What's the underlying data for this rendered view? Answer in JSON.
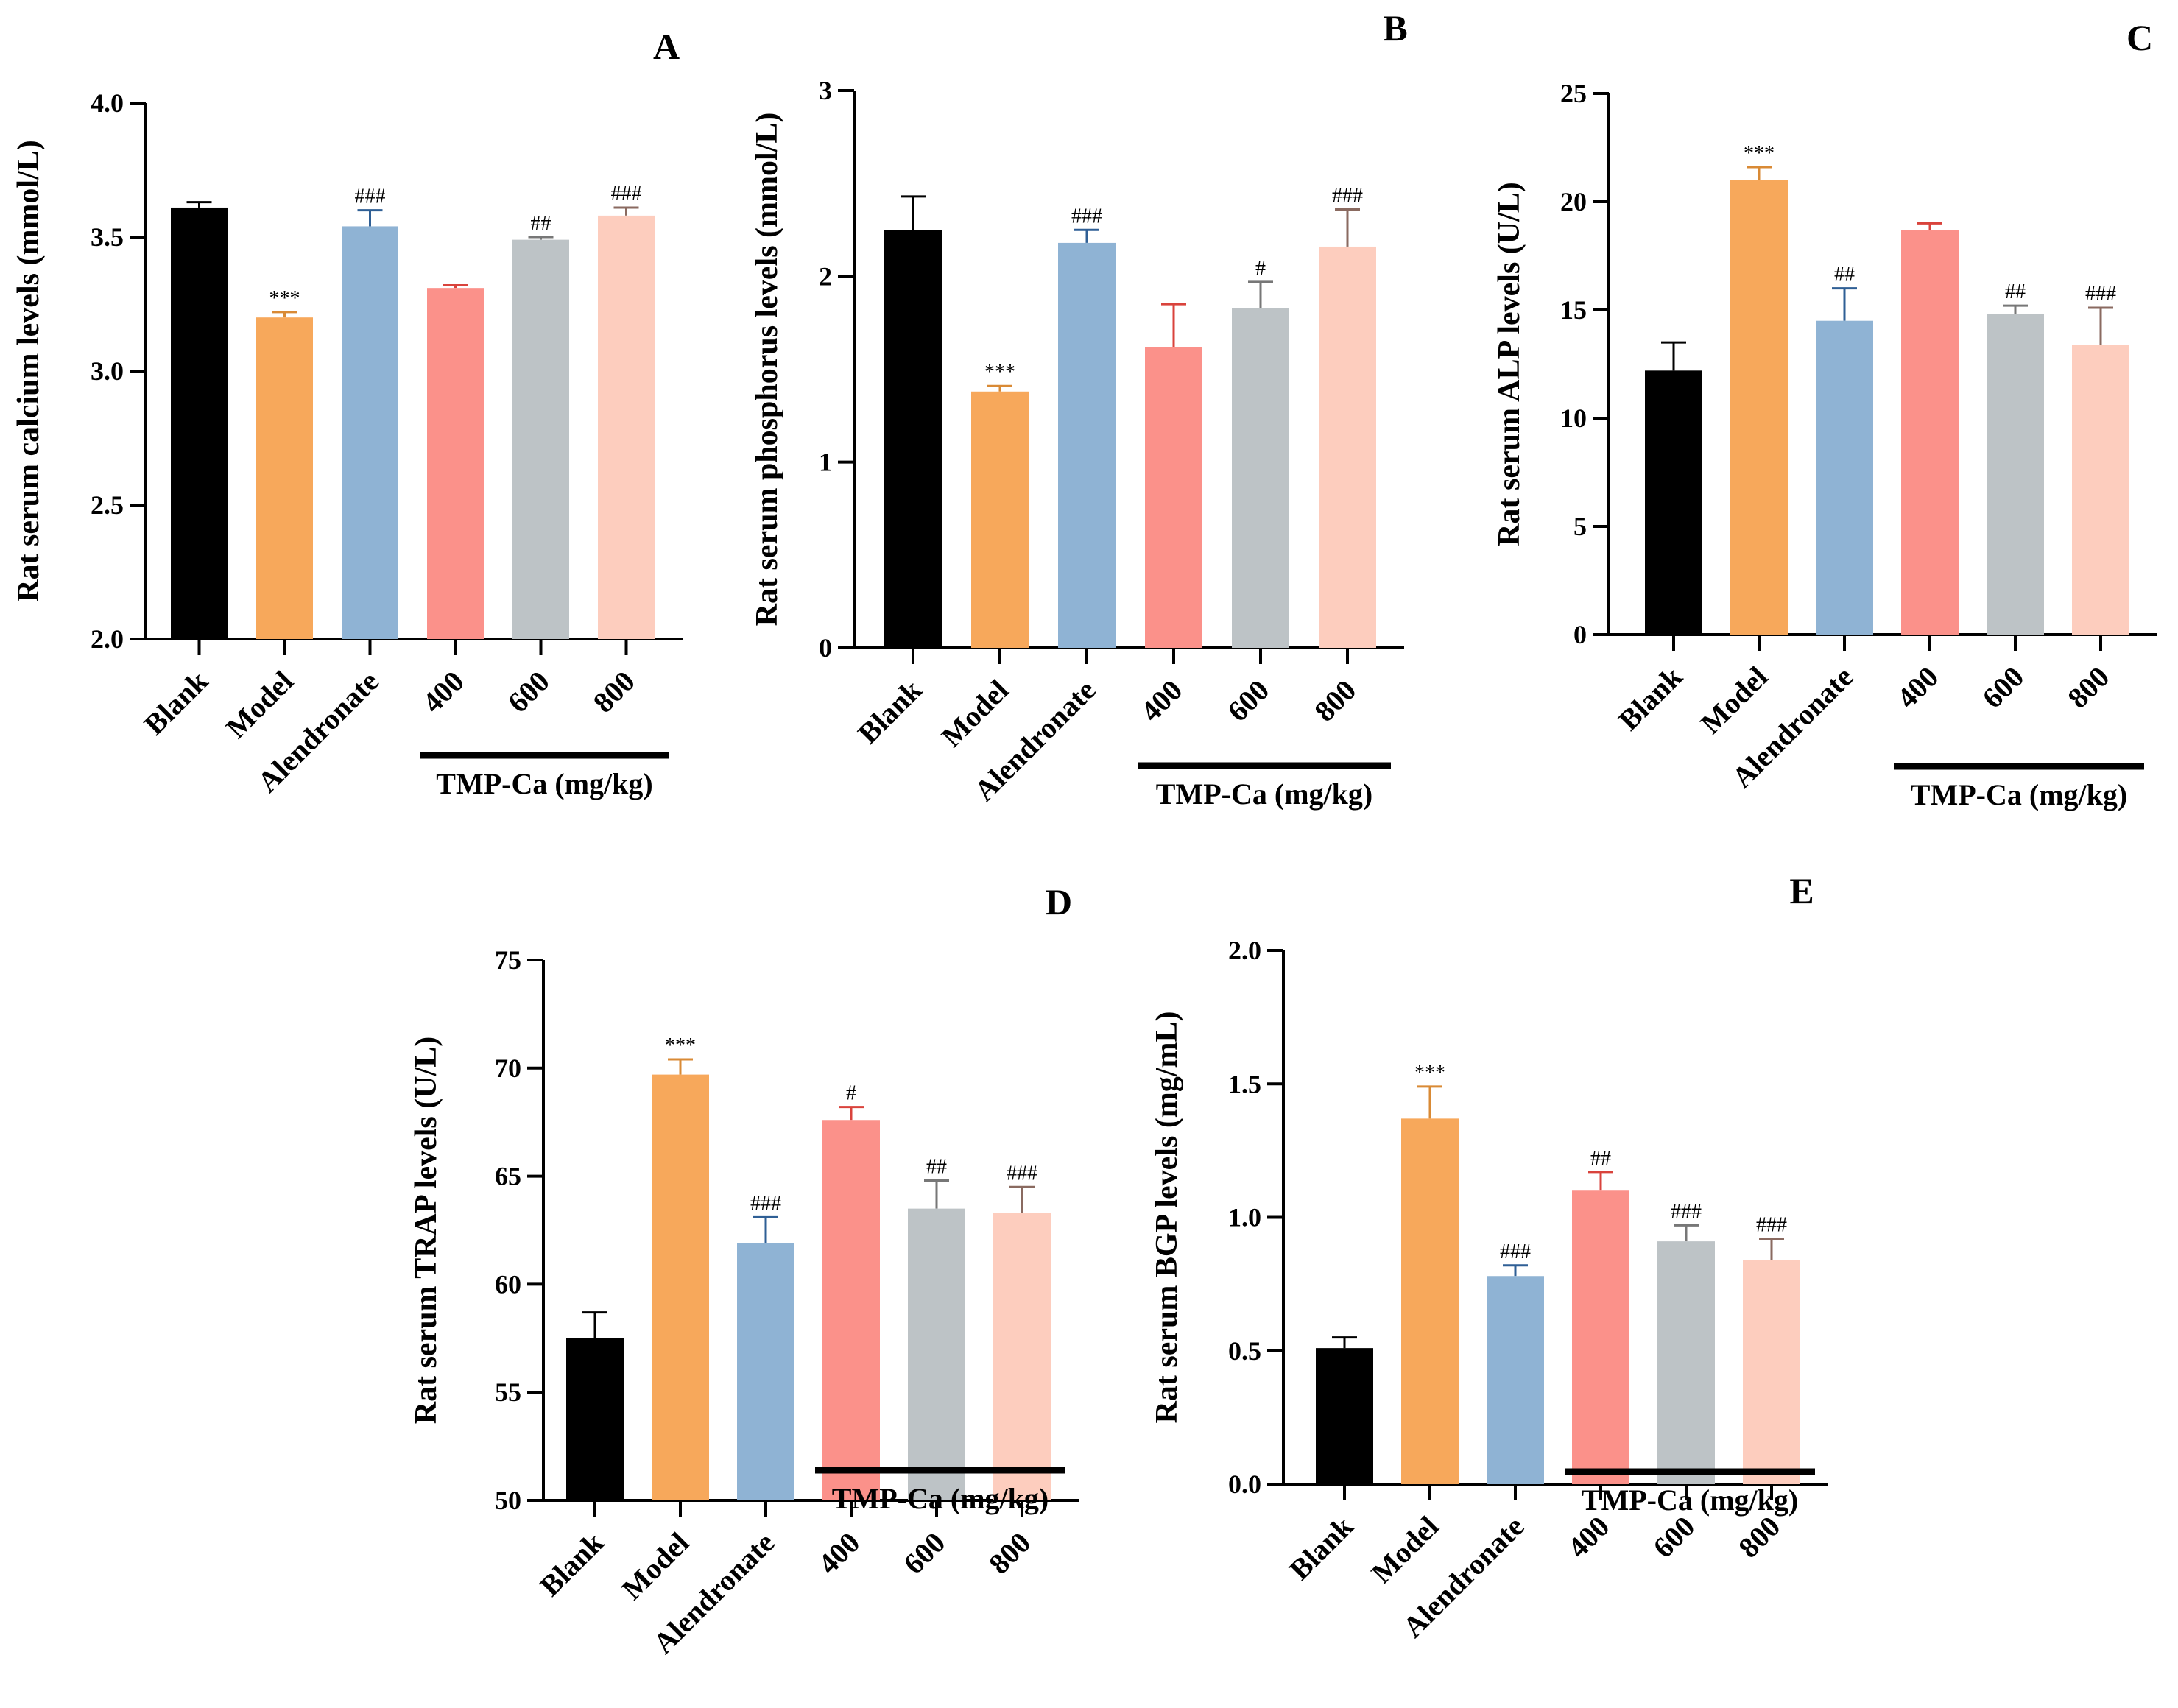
{
  "colors": {
    "Blank": "#000000",
    "Model": "#F7A85B",
    "Alendronate": "#8FB3D4",
    "400": "#FB918A",
    "600": "#BDC3C6",
    "800": "#FDCDBE"
  },
  "chart_data": [
    {
      "type": "bar",
      "panel": "A",
      "categories": [
        "Blank",
        "Model",
        "Alendronate",
        "400",
        "600",
        "800"
      ],
      "values": [
        3.61,
        3.2,
        3.54,
        3.31,
        3.49,
        3.58
      ],
      "errors": [
        0.02,
        0.02,
        0.06,
        0.01,
        0.01,
        0.03
      ],
      "significance": [
        "",
        "***",
        "###",
        "",
        "##",
        "###"
      ],
      "ylabel": "Rat serum calcium levels (mmol/L)",
      "ylim": [
        2.0,
        4.0
      ],
      "yticks": [
        "2.0",
        "2.5",
        "3.0",
        "3.5",
        "4.0"
      ],
      "group_label": "TMP-Ca (mg/kg)"
    },
    {
      "type": "bar",
      "panel": "B",
      "categories": [
        "Blank",
        "Model",
        "Alendronate",
        "400",
        "600",
        "800"
      ],
      "values": [
        2.25,
        1.38,
        2.18,
        1.62,
        1.83,
        2.16
      ],
      "errors": [
        0.18,
        0.03,
        0.07,
        0.23,
        0.14,
        0.2
      ],
      "significance": [
        "",
        "***",
        "###",
        "",
        "#",
        "###"
      ],
      "ylabel": "Rat serum phosphorus levels (mmol/L)",
      "ylim": [
        0,
        3
      ],
      "yticks": [
        "0",
        "1",
        "2",
        "3"
      ],
      "group_label": "TMP-Ca (mg/kg)"
    },
    {
      "type": "bar",
      "panel": "C",
      "categories": [
        "Blank",
        "Model",
        "Alendronate",
        "400",
        "600",
        "800"
      ],
      "values": [
        12.2,
        21.0,
        14.5,
        18.7,
        14.8,
        13.4
      ],
      "errors": [
        1.3,
        0.6,
        1.5,
        0.3,
        0.4,
        1.7
      ],
      "significance": [
        "",
        "***",
        "##",
        "",
        "##",
        "###"
      ],
      "ylabel": "Rat serum ALP levels (U/L)",
      "ylim": [
        0,
        25
      ],
      "yticks": [
        "0",
        "5",
        "10",
        "15",
        "20",
        "25"
      ],
      "group_label": "TMP-Ca (mg/kg)"
    },
    {
      "type": "bar",
      "panel": "D",
      "categories": [
        "Blank",
        "Model",
        "Alendronate",
        "400",
        "600",
        "800"
      ],
      "values": [
        57.5,
        69.7,
        61.9,
        67.6,
        63.5,
        63.3
      ],
      "errors": [
        1.2,
        0.7,
        1.2,
        0.6,
        1.3,
        1.2
      ],
      "significance": [
        "",
        "***",
        "###",
        "#",
        "##",
        "###"
      ],
      "ylabel": "Rat serum TRAP levels (U/L)",
      "ylim": [
        50,
        75
      ],
      "yticks": [
        "50",
        "55",
        "60",
        "65",
        "70",
        "75"
      ],
      "group_label": "TMP-Ca (mg/kg)"
    },
    {
      "type": "bar",
      "panel": "E",
      "categories": [
        "Blank",
        "Model",
        "Alendronate",
        "400",
        "600",
        "800"
      ],
      "values": [
        0.51,
        1.37,
        0.78,
        1.1,
        0.91,
        0.84
      ],
      "errors": [
        0.04,
        0.12,
        0.04,
        0.07,
        0.06,
        0.08
      ],
      "significance": [
        "",
        "***",
        "###",
        "##",
        "###",
        "###"
      ],
      "ylabel": "Rat serum BGP levels (mg/mL)",
      "ylim": [
        0.0,
        2.0
      ],
      "yticks": [
        "0.0",
        "0.5",
        "1.0",
        "1.5",
        "2.0"
      ],
      "group_label": "TMP-Ca (mg/kg)"
    }
  ]
}
